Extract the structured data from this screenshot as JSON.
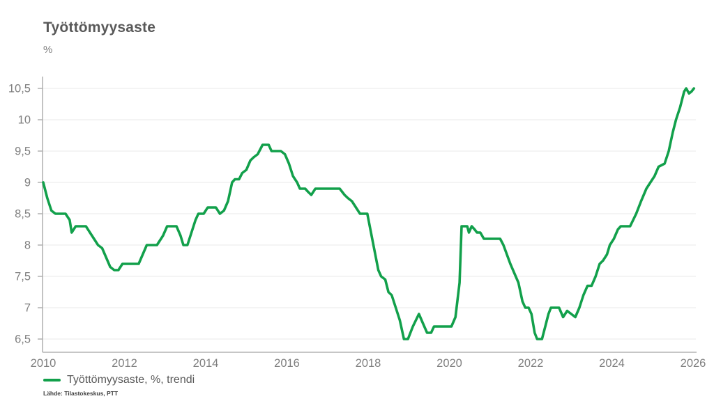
{
  "header": {
    "title": "Työttömyysaste",
    "unit_label": "%"
  },
  "legend": {
    "label": "Työttömyysaste, %, trendi"
  },
  "source": {
    "text": "Lähde: Tilastokeskus, PTT"
  },
  "colors": {
    "line": "#12a04b",
    "title_text": "#595959",
    "axis_text": "#7f7f7f",
    "grid_line": "#e9e9e9",
    "axis_line": "#a3a3a3"
  },
  "chart_data": {
    "type": "line",
    "title": "Työttömyysaste",
    "ylabel": "%",
    "xlabel": "",
    "grid": "horizontal",
    "legend_position": "bottom-left",
    "xlim": [
      2010,
      2026.1
    ],
    "ylim": [
      6.3,
      10.7
    ],
    "y_ticks": [
      {
        "v": 6.5,
        "label": "6,5"
      },
      {
        "v": 7,
        "label": "7"
      },
      {
        "v": 7.5,
        "label": "7,5"
      },
      {
        "v": 8,
        "label": "8"
      },
      {
        "v": 8.5,
        "label": "8,5"
      },
      {
        "v": 9,
        "label": "9"
      },
      {
        "v": 9.5,
        "label": "9,5"
      },
      {
        "v": 10,
        "label": "10"
      },
      {
        "v": 10.5,
        "label": "10,5"
      }
    ],
    "x_ticks": [
      {
        "v": 2010,
        "label": "2010"
      },
      {
        "v": 2012,
        "label": "2012"
      },
      {
        "v": 2014,
        "label": "2014"
      },
      {
        "v": 2016,
        "label": "2016"
      },
      {
        "v": 2018,
        "label": "2018"
      },
      {
        "v": 2020,
        "label": "2020"
      },
      {
        "v": 2022,
        "label": "2022"
      },
      {
        "v": 2024,
        "label": "2024"
      },
      {
        "v": 2026,
        "label": "2026"
      }
    ],
    "series": [
      {
        "name": "Työttömyysaste, %, trendi",
        "color": "#12a04b",
        "points": [
          [
            2010.0,
            9.0
          ],
          [
            2010.1,
            8.75
          ],
          [
            2010.2,
            8.55
          ],
          [
            2010.3,
            8.5
          ],
          [
            2010.55,
            8.5
          ],
          [
            2010.65,
            8.4
          ],
          [
            2010.7,
            8.2
          ],
          [
            2010.8,
            8.3
          ],
          [
            2011.05,
            8.3
          ],
          [
            2011.2,
            8.15
          ],
          [
            2011.35,
            8.0
          ],
          [
            2011.45,
            7.95
          ],
          [
            2011.55,
            7.8
          ],
          [
            2011.65,
            7.65
          ],
          [
            2011.75,
            7.6
          ],
          [
            2011.85,
            7.6
          ],
          [
            2011.95,
            7.7
          ],
          [
            2012.35,
            7.7
          ],
          [
            2012.45,
            7.85
          ],
          [
            2012.55,
            8.0
          ],
          [
            2012.8,
            8.0
          ],
          [
            2012.95,
            8.15
          ],
          [
            2013.05,
            8.3
          ],
          [
            2013.28,
            8.3
          ],
          [
            2013.38,
            8.15
          ],
          [
            2013.45,
            8.0
          ],
          [
            2013.55,
            8.0
          ],
          [
            2013.65,
            8.2
          ],
          [
            2013.75,
            8.4
          ],
          [
            2013.82,
            8.5
          ],
          [
            2013.95,
            8.5
          ],
          [
            2014.05,
            8.6
          ],
          [
            2014.25,
            8.6
          ],
          [
            2014.35,
            8.5
          ],
          [
            2014.45,
            8.55
          ],
          [
            2014.55,
            8.7
          ],
          [
            2014.65,
            9.0
          ],
          [
            2014.72,
            9.05
          ],
          [
            2014.82,
            9.05
          ],
          [
            2014.9,
            9.15
          ],
          [
            2015.0,
            9.2
          ],
          [
            2015.1,
            9.35
          ],
          [
            2015.18,
            9.4
          ],
          [
            2015.28,
            9.45
          ],
          [
            2015.4,
            9.6
          ],
          [
            2015.55,
            9.6
          ],
          [
            2015.62,
            9.5
          ],
          [
            2015.85,
            9.5
          ],
          [
            2015.95,
            9.45
          ],
          [
            2016.05,
            9.3
          ],
          [
            2016.15,
            9.1
          ],
          [
            2016.25,
            9.0
          ],
          [
            2016.32,
            8.9
          ],
          [
            2016.45,
            8.9
          ],
          [
            2016.52,
            8.85
          ],
          [
            2016.6,
            8.8
          ],
          [
            2016.7,
            8.9
          ],
          [
            2017.3,
            8.9
          ],
          [
            2017.42,
            8.8
          ],
          [
            2017.5,
            8.75
          ],
          [
            2017.6,
            8.7
          ],
          [
            2017.7,
            8.6
          ],
          [
            2017.8,
            8.5
          ],
          [
            2017.98,
            8.5
          ],
          [
            2018.1,
            8.1
          ],
          [
            2018.25,
            7.6
          ],
          [
            2018.32,
            7.5
          ],
          [
            2018.42,
            7.45
          ],
          [
            2018.5,
            7.25
          ],
          [
            2018.58,
            7.2
          ],
          [
            2018.68,
            7.0
          ],
          [
            2018.78,
            6.8
          ],
          [
            2018.88,
            6.5
          ],
          [
            2018.98,
            6.5
          ],
          [
            2019.1,
            6.7
          ],
          [
            2019.25,
            6.9
          ],
          [
            2019.35,
            6.75
          ],
          [
            2019.45,
            6.6
          ],
          [
            2019.55,
            6.6
          ],
          [
            2019.62,
            6.7
          ],
          [
            2020.05,
            6.7
          ],
          [
            2020.15,
            6.85
          ],
          [
            2020.25,
            7.4
          ],
          [
            2020.3,
            8.3
          ],
          [
            2020.44,
            8.3
          ],
          [
            2020.48,
            8.2
          ],
          [
            2020.55,
            8.3
          ],
          [
            2020.62,
            8.25
          ],
          [
            2020.68,
            8.2
          ],
          [
            2020.76,
            8.2
          ],
          [
            2020.85,
            8.1
          ],
          [
            2021.25,
            8.1
          ],
          [
            2021.33,
            8.0
          ],
          [
            2021.5,
            7.7
          ],
          [
            2021.7,
            7.4
          ],
          [
            2021.8,
            7.1
          ],
          [
            2021.87,
            7.0
          ],
          [
            2021.95,
            7.0
          ],
          [
            2022.02,
            6.9
          ],
          [
            2022.1,
            6.6
          ],
          [
            2022.16,
            6.5
          ],
          [
            2022.28,
            6.5
          ],
          [
            2022.36,
            6.7
          ],
          [
            2022.44,
            6.9
          ],
          [
            2022.5,
            7.0
          ],
          [
            2022.7,
            7.0
          ],
          [
            2022.8,
            6.85
          ],
          [
            2022.9,
            6.95
          ],
          [
            2023.0,
            6.9
          ],
          [
            2023.1,
            6.85
          ],
          [
            2023.2,
            7.0
          ],
          [
            2023.3,
            7.2
          ],
          [
            2023.4,
            7.35
          ],
          [
            2023.5,
            7.35
          ],
          [
            2023.6,
            7.5
          ],
          [
            2023.7,
            7.7
          ],
          [
            2023.78,
            7.75
          ],
          [
            2023.88,
            7.85
          ],
          [
            2023.95,
            8.0
          ],
          [
            2024.05,
            8.1
          ],
          [
            2024.15,
            8.25
          ],
          [
            2024.22,
            8.3
          ],
          [
            2024.45,
            8.3
          ],
          [
            2024.6,
            8.5
          ],
          [
            2024.72,
            8.7
          ],
          [
            2024.85,
            8.9
          ],
          [
            2024.95,
            9.0
          ],
          [
            2025.05,
            9.1
          ],
          [
            2025.15,
            9.25
          ],
          [
            2025.3,
            9.3
          ],
          [
            2025.4,
            9.5
          ],
          [
            2025.5,
            9.8
          ],
          [
            2025.58,
            10.0
          ],
          [
            2025.68,
            10.2
          ],
          [
            2025.78,
            10.45
          ],
          [
            2025.83,
            10.5
          ],
          [
            2025.9,
            10.42
          ],
          [
            2025.96,
            10.45
          ],
          [
            2026.02,
            10.5
          ]
        ]
      }
    ]
  }
}
